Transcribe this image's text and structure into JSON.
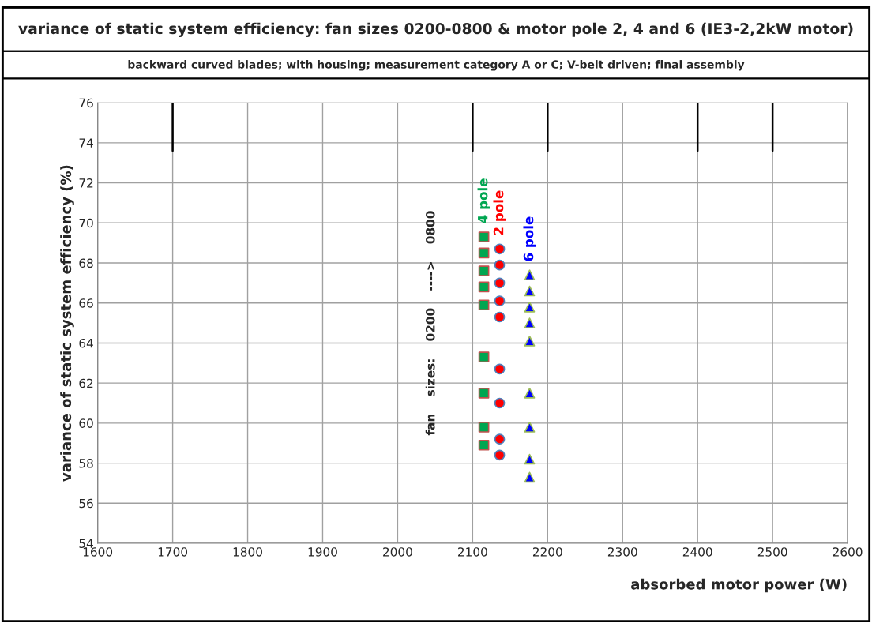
{
  "chart_data": {
    "type": "scatter",
    "title": "variance of static system efficiency: fan sizes 0200-0800 & motor pole 2, 4 and 6 (IE3-2,2kW motor)",
    "subtitle": "backward curved blades; with housing; measurement category A or C; V-belt driven; final assembly",
    "xlabel": "absorbed motor power (W)",
    "ylabel": "variance of static system efficiency (%)",
    "annotations": [
      "fan    sizes:    0200    ---->    0800"
    ],
    "series": [
      {
        "name": "4 pole",
        "color": "#00a651",
        "marker": "square",
        "x": [
          2115,
          2115,
          2115,
          2115,
          2115,
          2115,
          2115,
          2115,
          2115
        ],
        "values": [
          69.3,
          68.5,
          67.6,
          66.8,
          65.9,
          63.3,
          61.5,
          59.8,
          58.9
        ]
      },
      {
        "name": "2 pole",
        "color": "#ff0000",
        "marker": "circle",
        "x": [
          2136,
          2136,
          2136,
          2136,
          2136,
          2136,
          2136,
          2136,
          2136
        ],
        "values": [
          68.7,
          67.9,
          67.0,
          66.1,
          65.3,
          62.7,
          61.0,
          59.2,
          58.4
        ]
      },
      {
        "name": "6 pole",
        "color": "#0000ff",
        "marker": "triangle",
        "x": [
          2176,
          2176,
          2176,
          2176,
          2176,
          2176,
          2176,
          2176,
          2176
        ],
        "values": [
          67.4,
          66.6,
          65.8,
          65.0,
          64.1,
          61.5,
          59.8,
          58.2,
          57.3
        ]
      },
      {
        "type": "line",
        "color": "#000000",
        "marker": "none",
        "x": [
          1700,
          1700,
          null,
          2100,
          2100,
          null,
          2200,
          2200,
          null,
          2400,
          2400,
          null,
          2500,
          2500
        ],
        "values": [
          76,
          73.6,
          null,
          76,
          73.6,
          null,
          76,
          73.6,
          null,
          76,
          73.6,
          null,
          76,
          73.6
        ]
      }
    ],
    "xlim": [
      1600,
      2600
    ],
    "xticks": [
      1600,
      1700,
      1800,
      1900,
      2000,
      2100,
      2200,
      2300,
      2400,
      2500,
      2600
    ],
    "ylim": [
      54,
      76
    ],
    "yticks": [
      54,
      56,
      58,
      60,
      62,
      64,
      66,
      68,
      70,
      72,
      74,
      76
    ],
    "grid": true,
    "legend": false
  }
}
